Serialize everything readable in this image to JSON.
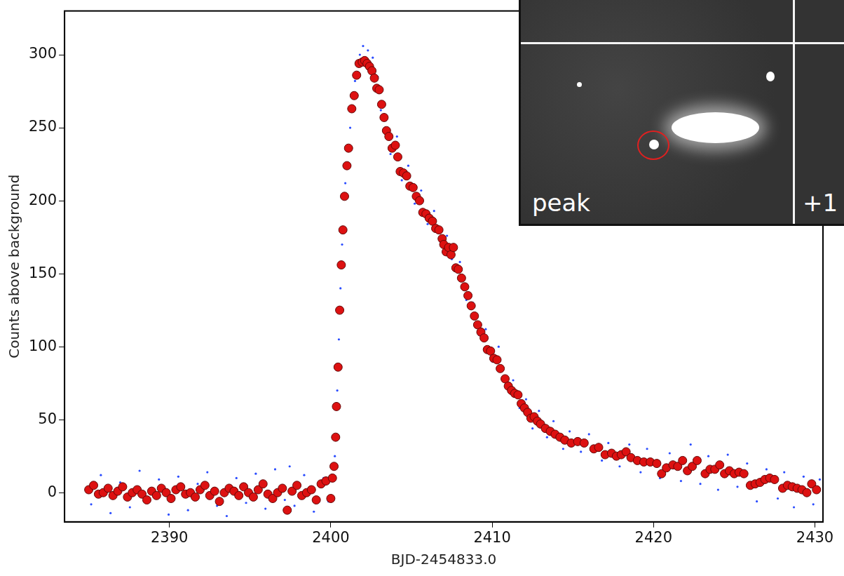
{
  "chart_data": {
    "type": "scatter",
    "x_label": "BJD-2454833.0",
    "y_label": "Counts above background",
    "xlim": [
      2383.5,
      2430.5
    ],
    "ylim": [
      -20,
      330
    ],
    "xticks": [
      2390,
      2400,
      2410,
      2420,
      2430
    ],
    "yticks": [
      0,
      50,
      100,
      150,
      200,
      250,
      300
    ],
    "grid": false,
    "annotations": [
      "peak",
      "+1"
    ],
    "series": [
      {
        "color": "#2a4cff",
        "marker": "point",
        "x": [
          2385.15,
          2385.75,
          2386.35,
          2386.95,
          2387.55,
          2388.15,
          2388.75,
          2389.35,
          2389.95,
          2390.55,
          2391.15,
          2391.75,
          2392.35,
          2392.95,
          2393.55,
          2394.15,
          2394.75,
          2395.35,
          2395.95,
          2396.55,
          2397.15,
          2397.45,
          2397.75,
          2398.35,
          2398.95,
          2399.55,
          2399.85,
          2400.25,
          2400.4,
          2400.5,
          2400.6,
          2400.7,
          2400.9,
          2401.2,
          2401.5,
          2401.8,
          2402.0,
          2402.3,
          2402.6,
          2402.9,
          2403.1,
          2403.4,
          2403.7,
          2404.1,
          2404.4,
          2404.8,
          2405.2,
          2405.6,
          2406.0,
          2406.4,
          2406.8,
          2407.2,
          2407.5,
          2408.0,
          2408.4,
          2408.8,
          2409.2,
          2409.6,
          2410.0,
          2410.4,
          2410.9,
          2411.3,
          2411.7,
          2412.1,
          2412.5,
          2412.9,
          2413.4,
          2413.8,
          2414.4,
          2414.8,
          2415.5,
          2416.0,
          2416.8,
          2417.2,
          2417.9,
          2418.5,
          2419.2,
          2419.6,
          2420.4,
          2421.0,
          2421.7,
          2422.3,
          2422.9,
          2423.4,
          2424.0,
          2424.6,
          2425.2,
          2425.8,
          2426.4,
          2427.0,
          2427.7,
          2428.1,
          2428.7,
          2429.3,
          2429.9,
          2430.3
        ],
        "values": [
          -8,
          12,
          -14,
          7,
          -10,
          15,
          -6,
          9,
          -15,
          11,
          -12,
          6,
          14,
          -9,
          -16,
          10,
          -7,
          13,
          -11,
          16,
          -5,
          18,
          -9,
          12,
          -13,
          10,
          -6,
          25,
          70,
          105,
          140,
          170,
          212,
          250,
          282,
          300,
          306,
          303,
          298,
          285,
          262,
          255,
          232,
          244,
          214,
          224,
          198,
          207,
          184,
          193,
          172,
          176,
          160,
          158,
          132,
          130,
          108,
          112,
          90,
          100,
          72,
          77,
          58,
          64,
          44,
          56,
          38,
          49,
          30,
          42,
          28,
          40,
          22,
          34,
          18,
          33,
          14,
          30,
          10,
          27,
          8,
          33,
          6,
          25,
          2,
          26,
          4,
          20,
          -6,
          16,
          -4,
          14,
          -10,
          11,
          -8,
          9
        ]
      },
      {
        "color": "#dd1111",
        "marker": "circle",
        "x": [
          2385.0,
          2385.3,
          2385.6,
          2385.9,
          2386.2,
          2386.5,
          2386.8,
          2387.1,
          2387.4,
          2387.7,
          2388.0,
          2388.3,
          2388.6,
          2388.9,
          2389.2,
          2389.5,
          2389.8,
          2390.1,
          2390.4,
          2390.7,
          2391.0,
          2391.3,
          2391.6,
          2391.9,
          2392.2,
          2392.5,
          2392.8,
          2393.1,
          2393.4,
          2393.7,
          2394.0,
          2394.3,
          2394.6,
          2394.9,
          2395.2,
          2395.5,
          2395.8,
          2396.1,
          2396.4,
          2396.7,
          2397.0,
          2397.3,
          2397.6,
          2397.9,
          2398.2,
          2398.5,
          2398.8,
          2399.1,
          2399.4,
          2399.7,
          2400.0,
          2400.1,
          2400.2,
          2400.3,
          2400.35,
          2400.45,
          2400.55,
          2400.65,
          2400.75,
          2400.85,
          2401.0,
          2401.1,
          2401.3,
          2401.45,
          2401.6,
          2401.75,
          2401.95,
          2402.1,
          2402.25,
          2402.4,
          2402.55,
          2402.7,
          2402.85,
          2403.0,
          2403.15,
          2403.3,
          2403.45,
          2403.6,
          2403.8,
          2404.0,
          2404.15,
          2404.3,
          2404.5,
          2404.7,
          2404.9,
          2405.1,
          2405.3,
          2405.5,
          2405.7,
          2405.9,
          2406.1,
          2406.3,
          2406.5,
          2406.7,
          2406.9,
          2407.0,
          2407.15,
          2407.3,
          2407.45,
          2407.6,
          2407.75,
          2407.9,
          2408.1,
          2408.3,
          2408.5,
          2408.7,
          2408.9,
          2409.1,
          2409.3,
          2409.5,
          2409.7,
          2409.9,
          2410.1,
          2410.3,
          2410.5,
          2410.8,
          2411.0,
          2411.2,
          2411.4,
          2411.6,
          2411.8,
          2412.0,
          2412.2,
          2412.4,
          2412.6,
          2412.8,
          2413.0,
          2413.3,
          2413.6,
          2413.9,
          2414.2,
          2414.5,
          2414.9,
          2415.3,
          2415.7,
          2416.3,
          2416.6,
          2417.0,
          2417.4,
          2417.7,
          2418.0,
          2418.3,
          2418.6,
          2419.0,
          2419.4,
          2419.8,
          2420.2,
          2420.5,
          2420.8,
          2421.2,
          2421.5,
          2421.8,
          2422.1,
          2422.4,
          2422.7,
          2423.2,
          2423.5,
          2423.8,
          2424.1,
          2424.4,
          2424.7,
          2425.0,
          2425.3,
          2425.6,
          2426.0,
          2426.3,
          2426.6,
          2426.9,
          2427.2,
          2427.5,
          2428.0,
          2428.3,
          2428.6,
          2428.9,
          2429.2,
          2429.5,
          2429.8,
          2430.1
        ],
        "values": [
          2,
          5,
          -1,
          0,
          3,
          -2,
          1,
          4,
          -3,
          0,
          2,
          -1,
          -5,
          1,
          -2,
          3,
          0,
          -4,
          2,
          4,
          -1,
          0,
          -3,
          2,
          5,
          -2,
          1,
          -6,
          0,
          3,
          1,
          -2,
          4,
          0,
          -3,
          2,
          6,
          -1,
          -4,
          0,
          3,
          -12,
          1,
          5,
          -2,
          0,
          2,
          -5,
          6,
          8,
          -4,
          10,
          18,
          38,
          59,
          86,
          125,
          156,
          180,
          203,
          224,
          236,
          263,
          272,
          286,
          294,
          295,
          296,
          294,
          292,
          289,
          284,
          277,
          276,
          266,
          257,
          248,
          244,
          236,
          238,
          230,
          220,
          219,
          217,
          210,
          209,
          203,
          200,
          192,
          191,
          188,
          186,
          181,
          180,
          174,
          170,
          165,
          168,
          163,
          168,
          154,
          153,
          147,
          141,
          135,
          128,
          121,
          115,
          110,
          106,
          98,
          97,
          92,
          91,
          85,
          78,
          73,
          70,
          68,
          67,
          61,
          58,
          55,
          51,
          52,
          49,
          47,
          44,
          42,
          40,
          38,
          36,
          34,
          35,
          34,
          30,
          31,
          26,
          27,
          25,
          26,
          28,
          24,
          22,
          21,
          21,
          20,
          13,
          17,
          19,
          18,
          22,
          15,
          18,
          22,
          13,
          16,
          16,
          19,
          13,
          15,
          13,
          14,
          13,
          5,
          6,
          7,
          9,
          10,
          9,
          3,
          5,
          4,
          3,
          2,
          0,
          6,
          2
        ]
      }
    ]
  }
}
